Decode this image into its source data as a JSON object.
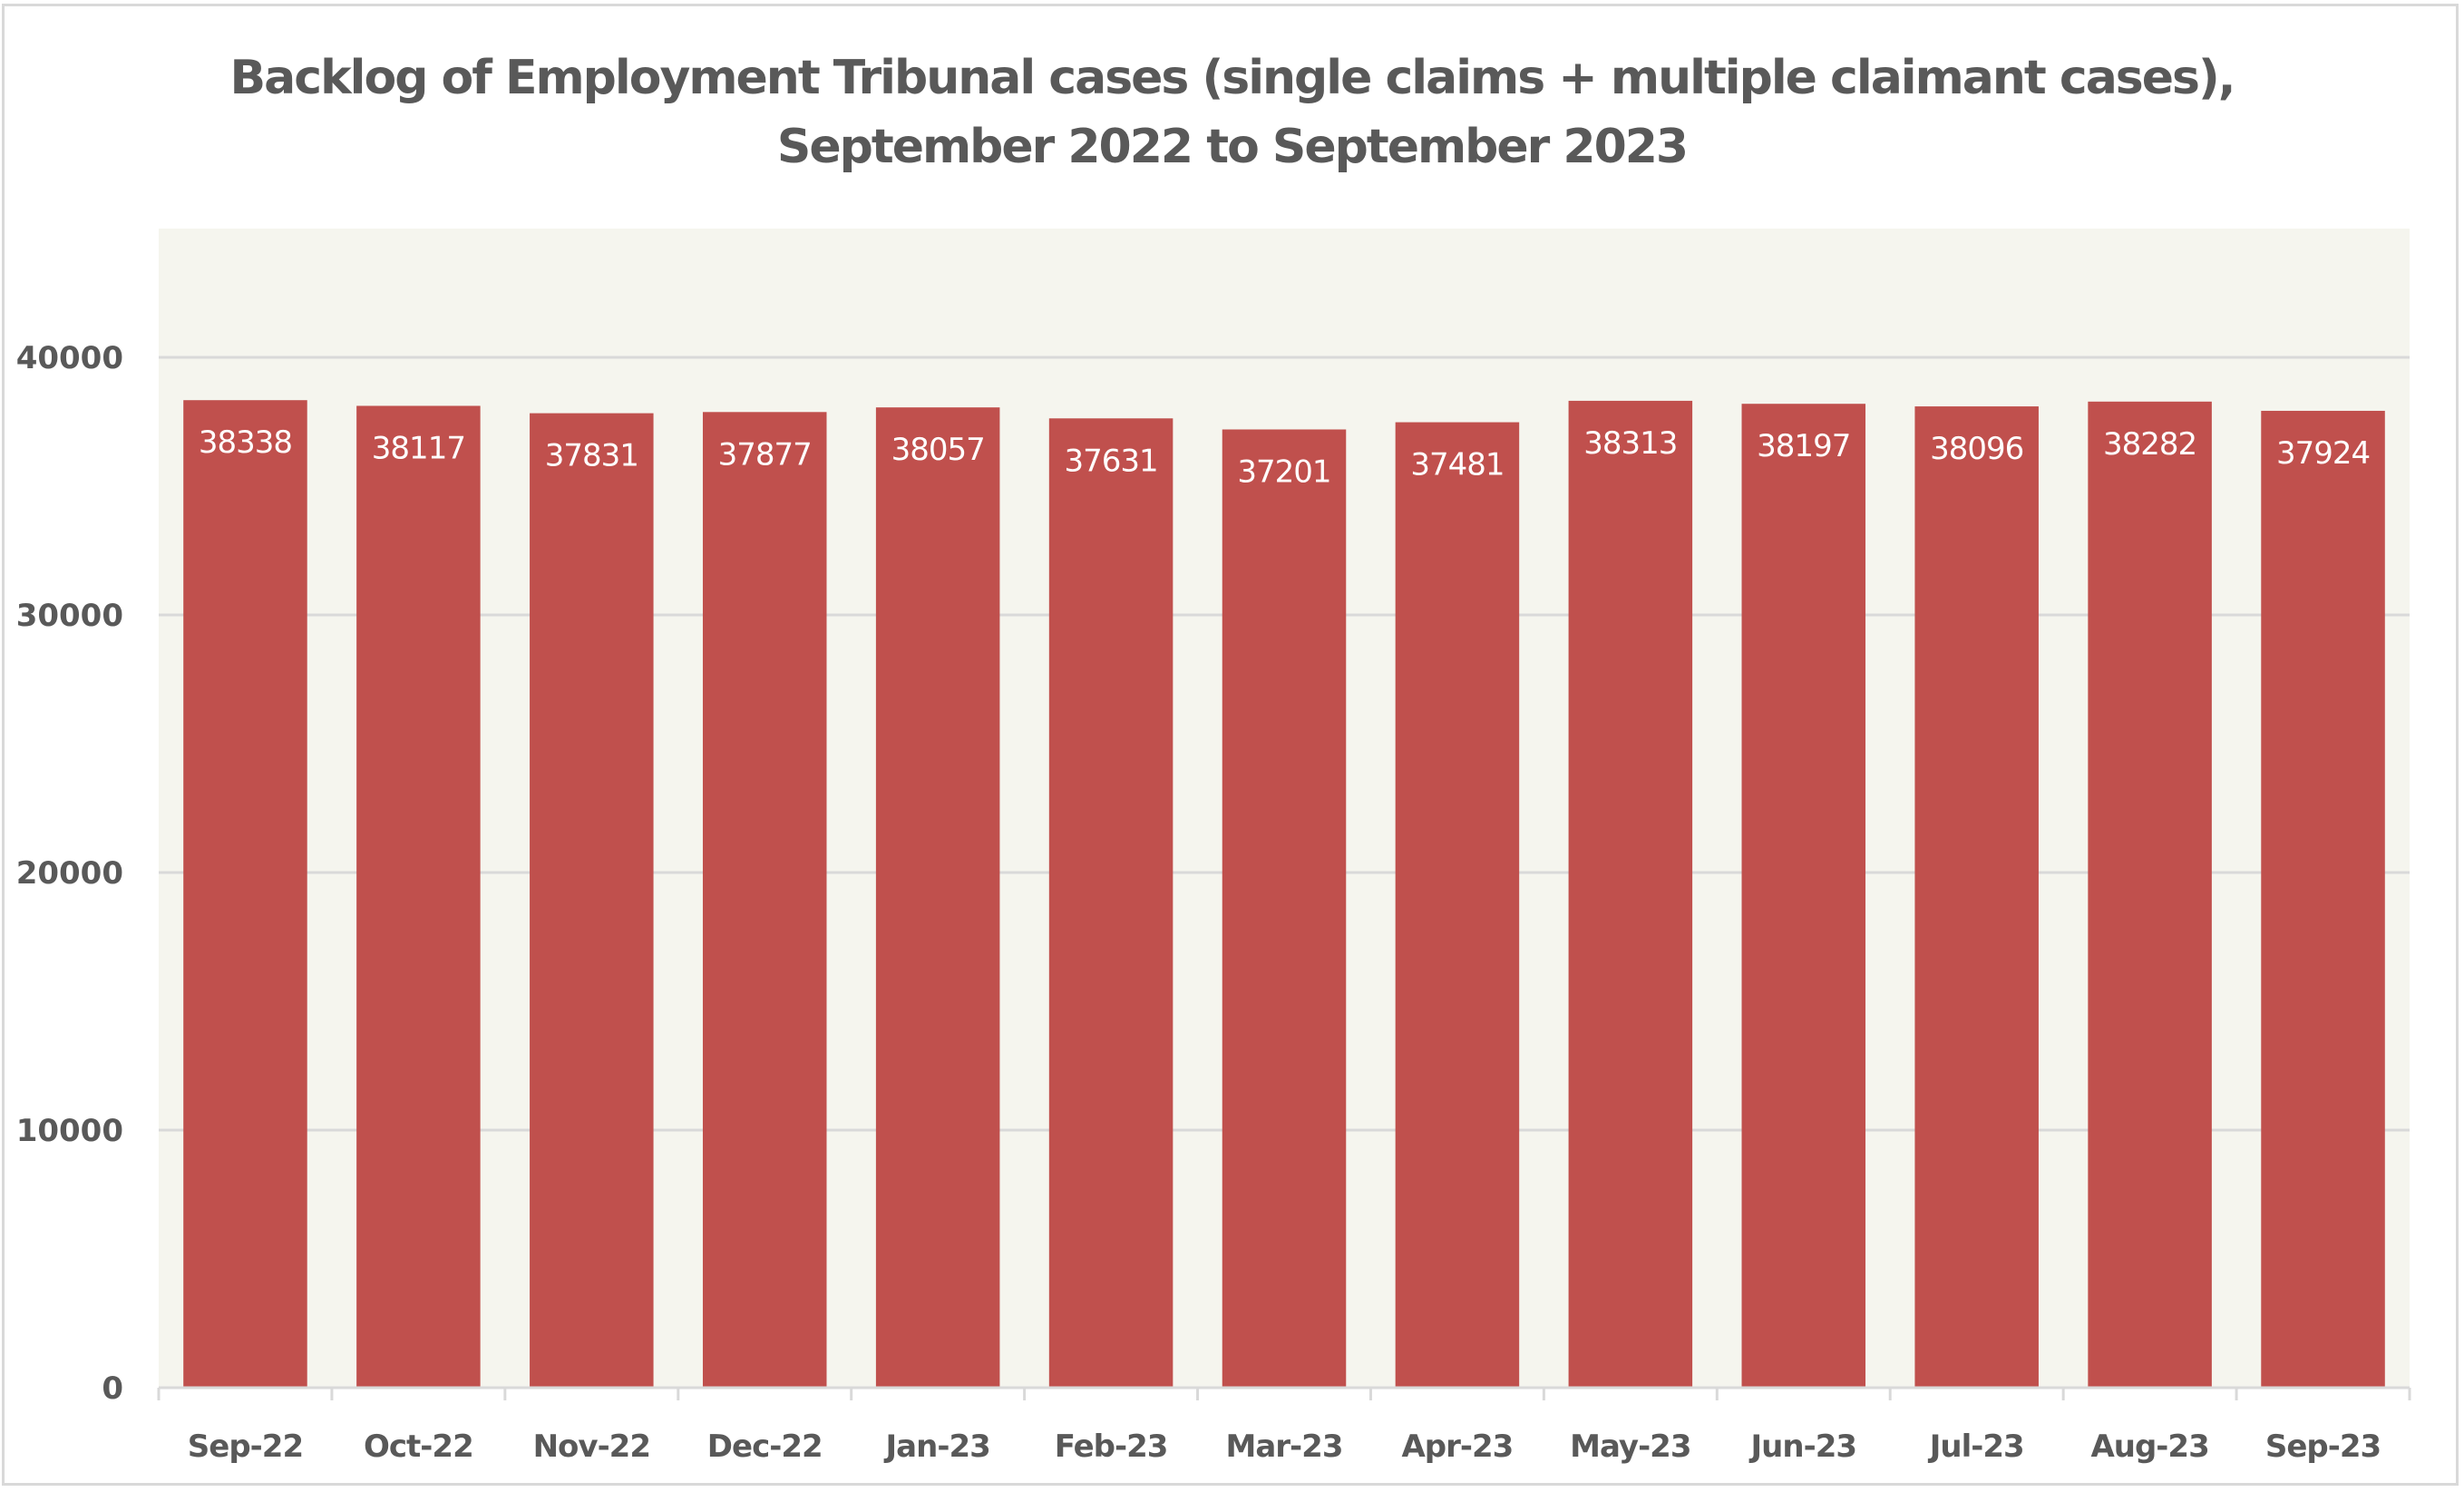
{
  "chart_data": {
    "type": "bar",
    "title": "Backlog of Employment Tribunal cases (single claims + multiple claimant cases), September 2022 to September 2023",
    "title_lines": [
      "Backlog of Employment Tribunal cases (single claims + multiple claimant cases),",
      "September 2022 to September 2023"
    ],
    "xlabel": "",
    "ylabel": "",
    "categories": [
      "Sep-22",
      "Oct-22",
      "Nov-22",
      "Dec-22",
      "Jan-23",
      "Feb-23",
      "Mar-23",
      "Apr-23",
      "May-23",
      "Jun-23",
      "Jul-23",
      "Aug-23",
      "Sep-23"
    ],
    "values": [
      38338,
      38117,
      37831,
      37877,
      38057,
      37631,
      37201,
      37481,
      38313,
      38197,
      38096,
      38282,
      37924
    ],
    "data_labels": [
      "38338",
      "38117",
      "37831",
      "37877",
      "38057",
      "37631",
      "37201",
      "37481",
      "38313",
      "38197",
      "38096",
      "38282",
      "37924"
    ],
    "data_label_position": "inside-end",
    "ylim": [
      0,
      45000
    ],
    "yticks": [
      0,
      10000,
      20000,
      30000,
      40000
    ],
    "ytick_labels": [
      "0",
      "10000",
      "20000",
      "30000",
      "40000"
    ],
    "grid": true,
    "legend": "none",
    "colors": {
      "bar": "#C0504D",
      "plot_background": "#F5F5EE",
      "gridline": "#D9D9D9",
      "text": "#595959",
      "data_label": "#FFFFFF"
    }
  }
}
